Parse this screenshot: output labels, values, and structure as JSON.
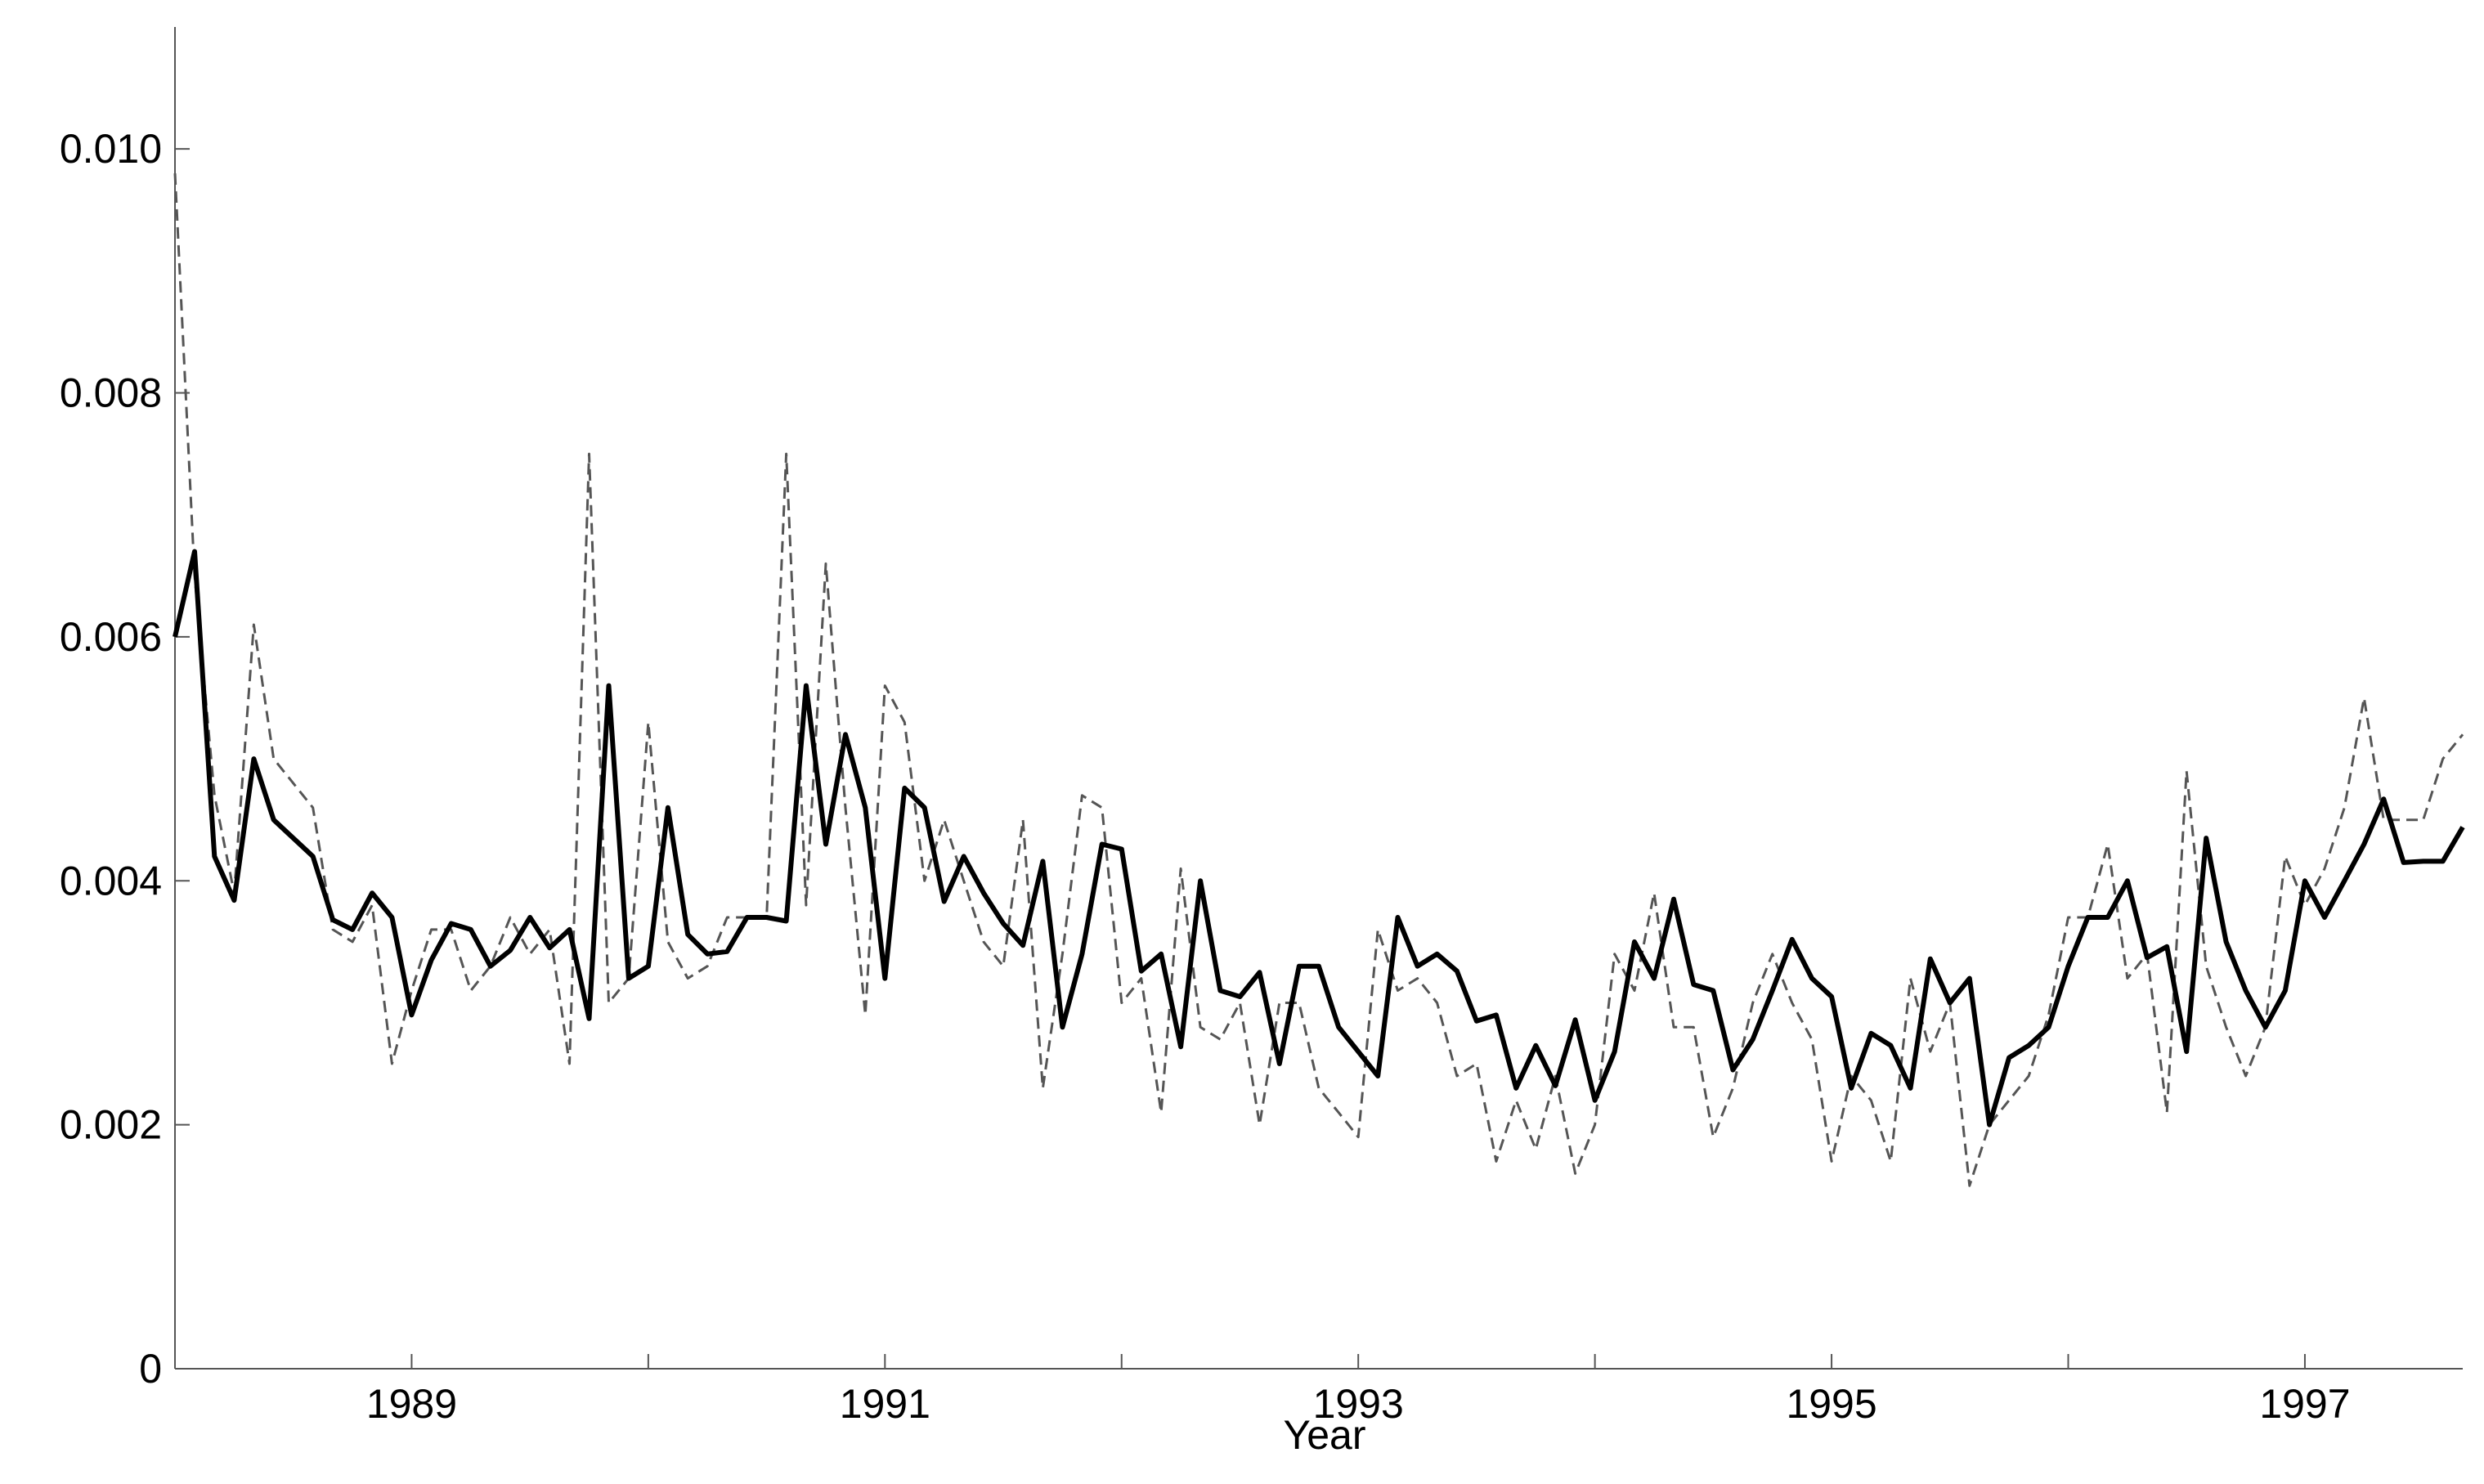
{
  "chart_data": {
    "type": "line",
    "x_label": "Year",
    "x": [
      1988,
      1988.083,
      1988.167,
      1988.25,
      1988.333,
      1988.417,
      1988.5,
      1988.583,
      1988.667,
      1988.75,
      1988.833,
      1988.917,
      1989,
      1989.083,
      1989.167,
      1989.25,
      1989.333,
      1989.417,
      1989.5,
      1989.583,
      1989.667,
      1989.75,
      1989.833,
      1989.917,
      1990,
      1990.083,
      1990.167,
      1990.25,
      1990.333,
      1990.417,
      1990.5,
      1990.583,
      1990.667,
      1990.75,
      1990.833,
      1990.917,
      1991,
      1991.083,
      1991.167,
      1991.25,
      1991.333,
      1991.417,
      1991.5,
      1991.583,
      1991.667,
      1991.75,
      1991.833,
      1991.917,
      1992,
      1992.083,
      1992.167,
      1992.25,
      1992.333,
      1992.417,
      1992.5,
      1992.583,
      1992.667,
      1992.75,
      1992.833,
      1992.917,
      1993,
      1993.083,
      1993.167,
      1993.25,
      1993.333,
      1993.417,
      1993.5,
      1993.583,
      1993.667,
      1993.75,
      1993.833,
      1993.917,
      1994,
      1994.083,
      1994.167,
      1994.25,
      1994.333,
      1994.417,
      1994.5,
      1994.583,
      1994.667,
      1994.75,
      1994.833,
      1994.917,
      1995,
      1995.083,
      1995.167,
      1995.25,
      1995.333,
      1995.417,
      1995.5,
      1995.583,
      1995.667,
      1995.75,
      1995.833,
      1995.917,
      1996,
      1996.083,
      1996.167,
      1996.25,
      1996.333,
      1996.417,
      1996.5,
      1996.583,
      1996.667,
      1996.75,
      1996.833,
      1996.917,
      1997,
      1997.083,
      1997.167,
      1997.25,
      1997.333,
      1997.417,
      1997.5,
      1997.583,
      1997.667
    ],
    "series": [
      {
        "color": "#000000",
        "dash": "solid",
        "values": [
          0.006,
          0.0067,
          0.0042,
          0.00384,
          0.005,
          0.0045,
          0.00435,
          0.0042,
          0.00368,
          0.0036,
          0.0039,
          0.0037,
          0.0029,
          0.00335,
          0.00365,
          0.0036,
          0.0033,
          0.00343,
          0.0037,
          0.00345,
          0.0036,
          0.00287,
          0.0056,
          0.0032,
          0.0033,
          0.0046,
          0.00356,
          0.0034,
          0.00342,
          0.0037,
          0.0037,
          0.00367,
          0.0056,
          0.0043,
          0.0052,
          0.0046,
          0.0032,
          0.00476,
          0.0046,
          0.00383,
          0.0042,
          0.0039,
          0.00365,
          0.00347,
          0.00416,
          0.0028,
          0.0034,
          0.0043,
          0.00426,
          0.00326,
          0.0034,
          0.00264,
          0.004,
          0.0031,
          0.00305,
          0.00325,
          0.0025,
          0.0033,
          0.0033,
          0.0028,
          0.0026,
          0.0024,
          0.0037,
          0.0033,
          0.0034,
          0.00326,
          0.00285,
          0.0029,
          0.0023,
          0.00265,
          0.00232,
          0.00286,
          0.0022,
          0.0026,
          0.0035,
          0.0032,
          0.00385,
          0.00315,
          0.0031,
          0.00245,
          0.0027,
          0.0031,
          0.00352,
          0.0032,
          0.00305,
          0.0023,
          0.00275,
          0.00265,
          0.0023,
          0.00336,
          0.003,
          0.0032,
          0.002,
          0.00255,
          0.00265,
          0.0028,
          0.0033,
          0.0037,
          0.0037,
          0.004,
          0.00337,
          0.00346,
          0.0026,
          0.00435,
          0.0035,
          0.0031,
          0.0028,
          0.0031,
          0.004,
          0.0037,
          0.004,
          0.0043,
          0.00467,
          0.00415,
          0.00416,
          0.00416,
          0.00444
        ]
      },
      {
        "color": "#555555",
        "dash": "dashed",
        "values": [
          0.0098,
          0.0065,
          0.0047,
          0.0039,
          0.0061,
          0.005,
          0.0048,
          0.0046,
          0.0036,
          0.0035,
          0.0038,
          0.0025,
          0.0031,
          0.0036,
          0.0036,
          0.0031,
          0.0033,
          0.0037,
          0.0034,
          0.0036,
          0.0025,
          0.0075,
          0.003,
          0.0032,
          0.0053,
          0.0035,
          0.0032,
          0.0033,
          0.0037,
          0.0037,
          0.0037,
          0.0075,
          0.0038,
          0.0066,
          0.0046,
          0.0029,
          0.0056,
          0.0053,
          0.004,
          0.0045,
          0.004,
          0.0035,
          0.0033,
          0.0045,
          0.0023,
          0.0034,
          0.0047,
          0.0046,
          0.003,
          0.0032,
          0.0021,
          0.0041,
          0.0028,
          0.0027,
          0.003,
          0.002,
          0.003,
          0.003,
          0.0023,
          0.0021,
          0.0019,
          0.0036,
          0.0031,
          0.0032,
          0.003,
          0.0024,
          0.0025,
          0.0017,
          0.0022,
          0.0018,
          0.0024,
          0.0016,
          0.002,
          0.0034,
          0.0031,
          0.0039,
          0.0028,
          0.0028,
          0.0019,
          0.0023,
          0.003,
          0.0034,
          0.003,
          0.0027,
          0.0017,
          0.0024,
          0.0022,
          0.0017,
          0.0032,
          0.0026,
          0.003,
          0.0015,
          0.002,
          0.0022,
          0.0024,
          0.0029,
          0.0037,
          0.0037,
          0.0043,
          0.0032,
          0.0034,
          0.0021,
          0.0049,
          0.0033,
          0.0028,
          0.0024,
          0.0028,
          0.0042,
          0.0038,
          0.0041,
          0.0046,
          0.0055,
          0.0045,
          0.0045,
          0.0045,
          0.005,
          0.0052
        ]
      }
    ],
    "xlim": [
      1988,
      1997.667
    ],
    "xticks": [
      1989,
      1991,
      1993,
      1995,
      1997
    ],
    "xminor_ticks": [
      1990,
      1992,
      1994,
      1996
    ],
    "ylim": [
      0,
      0.011
    ],
    "yticks": [
      0,
      {
        "value": 0.002,
        "label": "0.002"
      },
      {
        "value": 0.004,
        "label": "0.004"
      },
      {
        "value": 0.006,
        "label": "0.006"
      },
      {
        "value": 0.008,
        "label": "0.008"
      },
      {
        "value": 0.01,
        "label": "0.010"
      }
    ],
    "grid": false
  }
}
